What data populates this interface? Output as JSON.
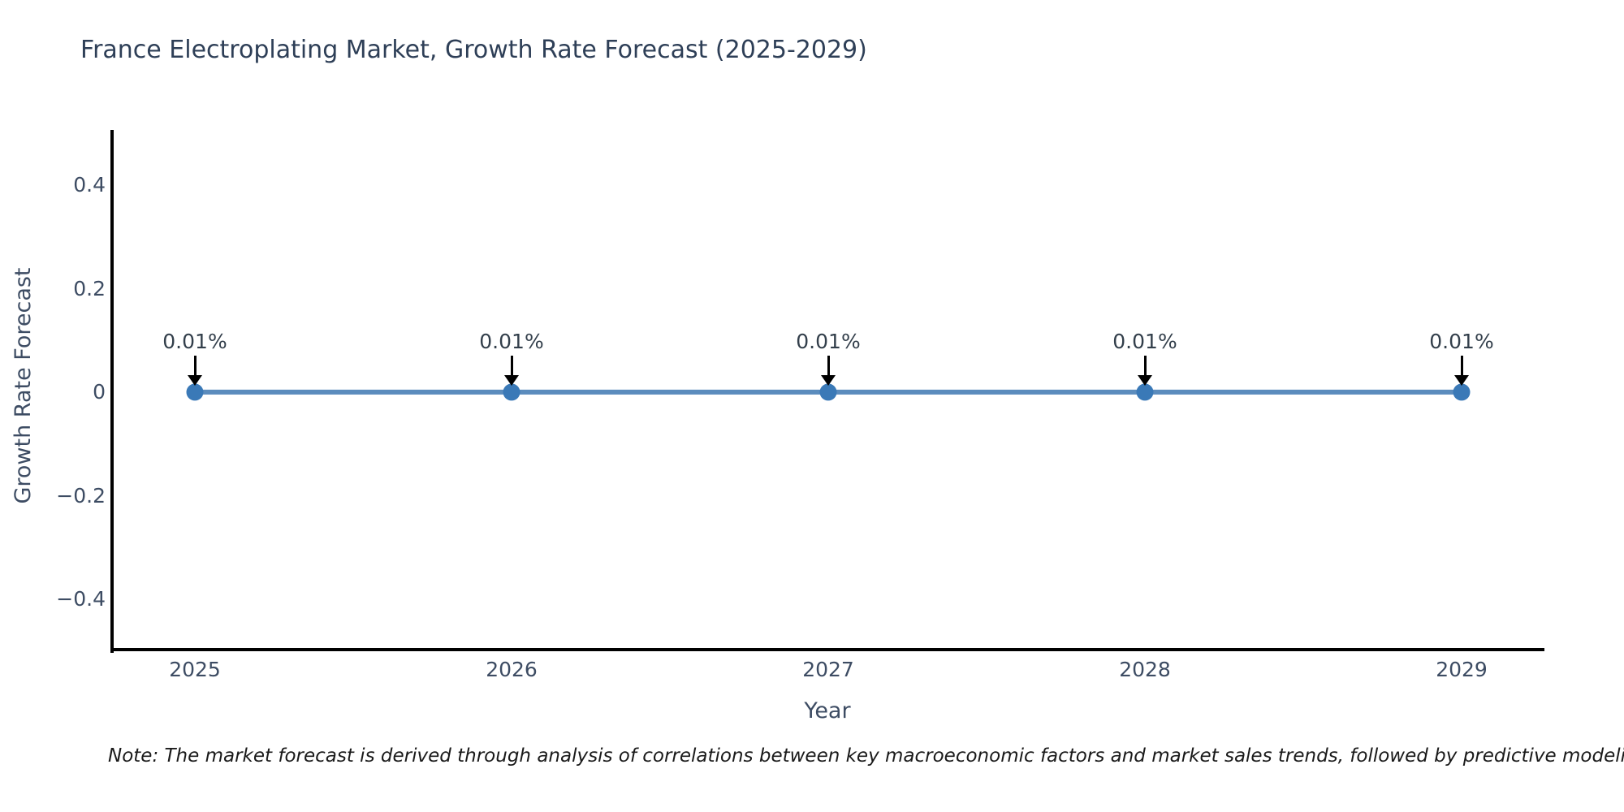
{
  "title": "France Electroplating Market, Growth Rate Forecast (2025-2029)",
  "note": "Note: The market forecast is derived through analysis of correlations between key macroeconomic factors and market sales trends, followed by predictive modeling to project future sales",
  "chart_data": {
    "type": "line",
    "title": "France Electroplating Market, Growth Rate Forecast (2025-2029)",
    "xlabel": "Year",
    "ylabel": "Growth Rate Forecast",
    "x": [
      2025,
      2026,
      2027,
      2028,
      2029
    ],
    "xtick_labels": [
      "2025",
      "2026",
      "2027",
      "2028",
      "2029"
    ],
    "series": [
      {
        "name": "Growth Rate Forecast",
        "values": [
          0.0001,
          0.0001,
          0.0001,
          0.0001,
          0.0001
        ],
        "point_labels": [
          "0.01%",
          "0.01%",
          "0.01%",
          "0.01%",
          "0.01%"
        ]
      }
    ],
    "yticks": [
      0.4,
      0.2,
      0,
      -0.2,
      -0.4
    ],
    "ytick_labels": [
      "0.4",
      "0.2",
      "0",
      "−0.2",
      "−0.4"
    ],
    "ylim": [
      -0.5,
      0.51
    ],
    "grid": false,
    "legend": false,
    "annotation_arrows": "down",
    "colors": {
      "line": "#5b8cbd",
      "marker": "#3a79b7",
      "axis": "#000000",
      "title_text": "#2e3f57",
      "tick_text": "#3d4c63",
      "annotation_text": "#333f4b",
      "background": "#ffffff"
    }
  }
}
